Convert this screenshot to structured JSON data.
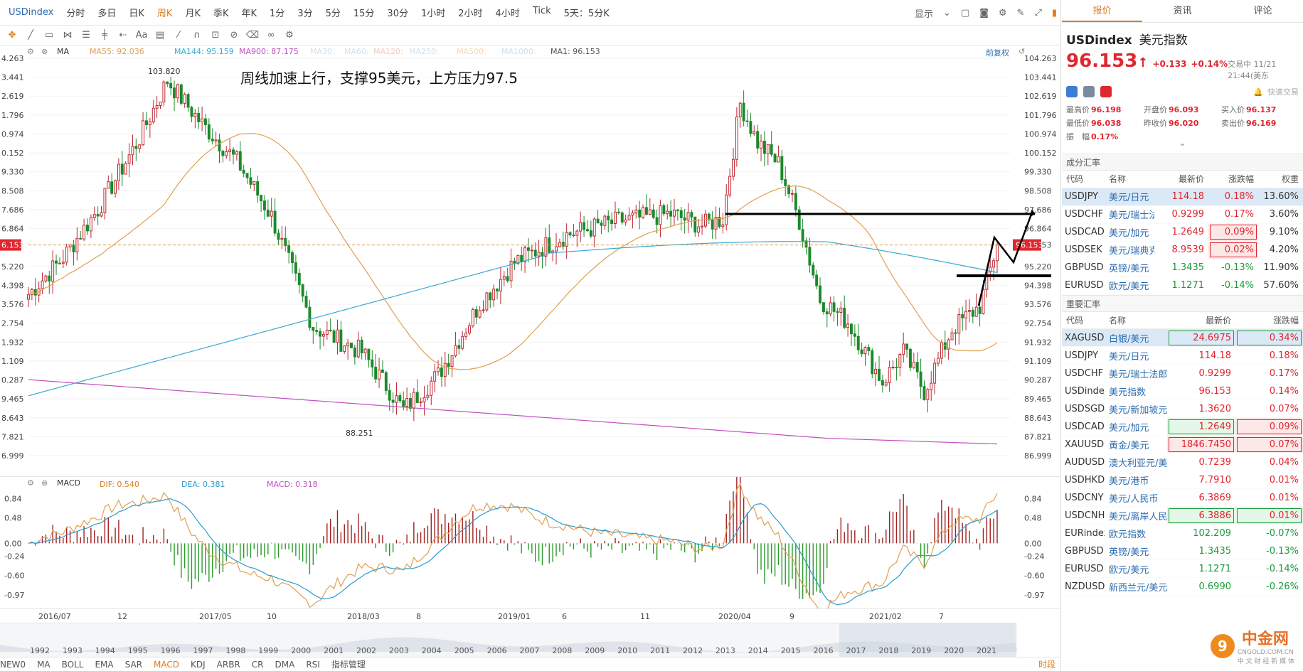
{
  "toolbar": {
    "symbol": "USDindex",
    "periods": [
      "分时",
      "多日",
      "日K",
      "周K",
      "月K",
      "季K",
      "年K",
      "1分",
      "3分",
      "5分",
      "15分",
      "30分",
      "1小时",
      "2小时",
      "4小时",
      "Tick",
      "5天：5分K"
    ],
    "active_period": "周K",
    "display_label": "显示"
  },
  "main_legend": {
    "indicator": "MA",
    "items": [
      {
        "label": "MA55: 92.036",
        "color": "#e0a050"
      },
      {
        "label": "MA144: 95.159",
        "color": "#3aa9d0"
      },
      {
        "label": "MA900: 87.175",
        "color": "#c050c0"
      },
      {
        "label": "MA30:",
        "color": "#cfe0ef"
      },
      {
        "label": "MA60:",
        "color": "#cfe0ef"
      },
      {
        "label": "MA120:",
        "color": "#f1c9c9"
      },
      {
        "label": "MA250:",
        "color": "#cfe0ef"
      },
      {
        "label": "MA500:",
        "color": "#f3d9b0"
      },
      {
        "label": "MA1000:",
        "color": "#cfe0ef"
      },
      {
        "label": "MA1: 96.153",
        "color": "#555555"
      }
    ],
    "fq_label": "前复权"
  },
  "annotation_text": "周线加速上行，支撑95美元，上方压力97.5",
  "marks": {
    "high": "103.820",
    "low": "88.251"
  },
  "price_axis": {
    "labels": [
      "104.263",
      "103.441",
      "102.619",
      "101.796",
      "100.974",
      "100.152",
      "99.330",
      "98.508",
      "97.686",
      "96.864",
      "96.153",
      "95.220",
      "94.398",
      "93.576",
      "92.754",
      "91.932",
      "91.109",
      "90.287",
      "89.465",
      "88.643",
      "87.821",
      "86.999"
    ],
    "left_labels": [
      "4.263",
      "3.441",
      "2.619",
      "1.796",
      "0.974",
      "0.152",
      "9.330",
      "8.508",
      "7.686",
      "6.864",
      "6.153",
      "5.220",
      "4.398",
      "3.576",
      "2.754",
      "1.932",
      "1.109",
      "0.287",
      "9.465",
      "8.643",
      "7.821",
      "6.999"
    ],
    "current": "96.153"
  },
  "macd_legend": {
    "indicator": "MACD",
    "items": [
      {
        "label": "DIF: 0.540",
        "color": "#e07c1b"
      },
      {
        "label": "DEA: 0.381",
        "color": "#2a9bd0"
      },
      {
        "label": "MACD: 0.318",
        "color": "#c050c0"
      }
    ],
    "axis": [
      "0.84",
      "0.48",
      "0.00",
      "-0.24",
      "-0.60",
      "-0.97"
    ]
  },
  "time_axis": [
    "2016/07",
    "12",
    "2017/05",
    "10",
    "2018/03",
    "8",
    "2019/01",
    "6",
    "11",
    "2020/04",
    "9",
    "2021/02",
    "7"
  ],
  "navigator_years": [
    "1992",
    "1993",
    "1994",
    "1995",
    "1996",
    "1997",
    "1998",
    "1999",
    "2000",
    "2001",
    "2002",
    "2003",
    "2004",
    "2005",
    "2006",
    "2007",
    "2008",
    "2009",
    "2010",
    "2011",
    "2012",
    "2013",
    "2014",
    "2015",
    "2016",
    "2017",
    "2018",
    "2019",
    "2020",
    "2021"
  ],
  "indicator_tabs": [
    "NEW0",
    "MA",
    "BOLL",
    "EMA",
    "SAR",
    "MACD",
    "KDJ",
    "ARBR",
    "CR",
    "DMA",
    "RSI",
    "指标管理"
  ],
  "indicator_active": "MACD",
  "indicator_right": "时段",
  "right_tabs": [
    "报价",
    "资讯",
    "评论"
  ],
  "right_active": "报价",
  "quote": {
    "code": "USDindex",
    "name": "美元指数",
    "price": "96.153",
    "change": "+0.133",
    "change_pct": "+0.14%",
    "time": "交易中 11/21 21:44(美东",
    "quick_trade": "快速交易",
    "stats": [
      {
        "label": "最高价",
        "value": "96.198"
      },
      {
        "label": "开盘价",
        "value": "96.093"
      },
      {
        "label": "买入价",
        "value": "96.137"
      },
      {
        "label": "最低价",
        "value": "96.038"
      },
      {
        "label": "昨收价",
        "value": "96.020"
      },
      {
        "label": "卖出价",
        "value": "96.169"
      },
      {
        "label": "振　幅",
        "value": "0.17%"
      }
    ]
  },
  "components": {
    "title": "成分汇率",
    "headers": [
      "代码",
      "名称",
      "最新价",
      "涨跌幅",
      "权重"
    ],
    "rows": [
      {
        "code": "USDJPY",
        "name": "美元/日元",
        "price": "114.18",
        "pct": "0.18%",
        "weight": "13.60%",
        "dir": "up",
        "box": ""
      },
      {
        "code": "USDCHF",
        "name": "美元/瑞士法",
        "price": "0.9299",
        "pct": "0.17%",
        "weight": "3.60%",
        "dir": "up",
        "box": ""
      },
      {
        "code": "USDCAD",
        "name": "美元/加元",
        "price": "1.2649",
        "pct": "0.09%",
        "weight": "9.10%",
        "dir": "up",
        "box": "pct"
      },
      {
        "code": "USDSEK",
        "name": "美元/瑞典克",
        "price": "8.9539",
        "pct": "0.02%",
        "weight": "4.20%",
        "dir": "up",
        "box": "pct"
      },
      {
        "code": "GBPUSD",
        "name": "英镑/美元",
        "price": "1.3435",
        "pct": "-0.13%",
        "weight": "11.90%",
        "dir": "dn",
        "box": ""
      },
      {
        "code": "EURUSD",
        "name": "欧元/美元",
        "price": "1.1271",
        "pct": "-0.14%",
        "weight": "57.60%",
        "dir": "dn",
        "box": ""
      }
    ]
  },
  "important": {
    "title": "重要汇率",
    "headers": [
      "代码",
      "名称",
      "最新价",
      "涨跌幅"
    ],
    "rows": [
      {
        "code": "XAGUSD",
        "name": "白银/美元",
        "price": "24.6975",
        "pct": "0.34%",
        "dir": "up",
        "box": "dn"
      },
      {
        "code": "USDJPY",
        "name": "美元/日元",
        "price": "114.18",
        "pct": "0.18%",
        "dir": "up",
        "box": ""
      },
      {
        "code": "USDCHF",
        "name": "美元/瑞士法郎",
        "price": "0.9299",
        "pct": "0.17%",
        "dir": "up",
        "box": ""
      },
      {
        "code": "USDinde",
        "name": "美元指数",
        "price": "96.153",
        "pct": "0.14%",
        "dir": "up",
        "box": ""
      },
      {
        "code": "USDSGD",
        "name": "美元/新加坡元",
        "price": "1.3620",
        "pct": "0.07%",
        "dir": "up",
        "box": ""
      },
      {
        "code": "USDCAD",
        "name": "美元/加元",
        "price": "1.2649",
        "pct": "0.09%",
        "dir": "up",
        "box": "pct"
      },
      {
        "code": "XAUUSD",
        "name": "黄金/美元",
        "price": "1846.7450",
        "pct": "0.07%",
        "dir": "up",
        "box": "up"
      },
      {
        "code": "AUDUSD",
        "name": "澳大利亚元/美元",
        "price": "0.7239",
        "pct": "0.04%",
        "dir": "up",
        "box": ""
      },
      {
        "code": "USDHKD",
        "name": "美元/港币",
        "price": "7.7910",
        "pct": "0.01%",
        "dir": "up",
        "box": ""
      },
      {
        "code": "USDCNY",
        "name": "美元/人民币",
        "price": "6.3869",
        "pct": "0.01%",
        "dir": "up",
        "box": ""
      },
      {
        "code": "USDCNH",
        "name": "美元/离岸人民币",
        "price": "6.3886",
        "pct": "0.01%",
        "dir": "up",
        "box": "dn"
      },
      {
        "code": "EURindex",
        "name": "欧元指数",
        "price": "102.209",
        "pct": "-0.07%",
        "dir": "dn",
        "box": ""
      },
      {
        "code": "GBPUSD",
        "name": "英镑/美元",
        "price": "1.3435",
        "pct": "-0.13%",
        "dir": "dn",
        "box": ""
      },
      {
        "code": "EURUSD",
        "name": "欧元/美元",
        "price": "1.1271",
        "pct": "-0.14%",
        "dir": "dn",
        "box": ""
      },
      {
        "code": "NZDUSD",
        "name": "新西兰元/美元",
        "price": "0.6990",
        "pct": "-0.26%",
        "dir": "dn",
        "box": ""
      }
    ]
  },
  "watermark": {
    "title": "中金网",
    "sub": "CNGOLD.COM.CN",
    "sub2": "中 文 财 经 新 媒 体",
    "logo": "9"
  },
  "colors": {
    "up": "#c0262f",
    "down": "#1b8a2a",
    "ma55": "#e0a050",
    "ma144": "#3aa9d0",
    "ma900": "#c050c0"
  }
}
